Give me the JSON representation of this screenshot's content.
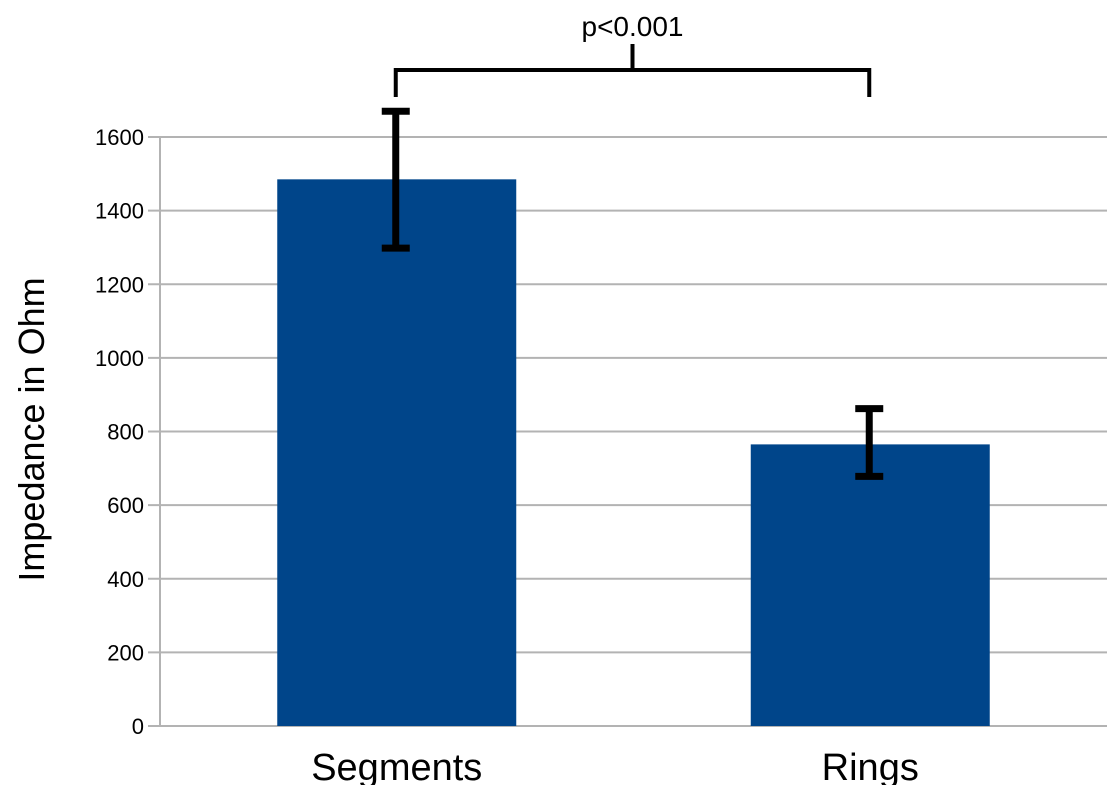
{
  "chart_data": {
    "type": "bar",
    "categories": [
      "Segments",
      "Rings"
    ],
    "values": [
      1485,
      765
    ],
    "errors": [
      {
        "low": 1298,
        "high": 1670
      },
      {
        "low": 678,
        "high": 862
      }
    ],
    "title": "",
    "xlabel": "",
    "ylabel": "Impedance in Ohm",
    "ylim": [
      0,
      1600
    ],
    "yticks": [
      0,
      200,
      400,
      600,
      800,
      1000,
      1200,
      1400,
      1600
    ],
    "grid": true,
    "bar_color": "#00458a",
    "annotation": {
      "text": "p<0.001",
      "between": [
        "Segments",
        "Rings"
      ]
    }
  }
}
